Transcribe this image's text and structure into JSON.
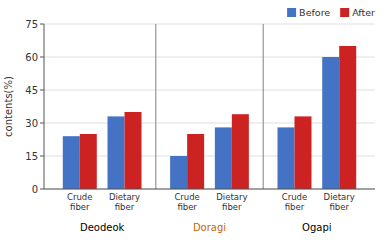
{
  "chart_data": {
    "type": "bar",
    "ylabel": "contents(%)",
    "categories": [
      "Crude\nfiber",
      "Dietary\nfiber",
      "Crude\nfiber",
      "Dietary\nfiber",
      "Crude\nfiber",
      "Dietary\nfiber"
    ],
    "groups": [
      {
        "name": "Deodeok",
        "color": "black"
      },
      {
        "name": "Doragi",
        "color": "#CC6600"
      },
      {
        "name": "Ogapi",
        "color": "black"
      }
    ],
    "series": [
      {
        "name": "Before",
        "color": "#4472C4",
        "values": [
          24,
          33,
          15,
          28,
          28,
          60
        ]
      },
      {
        "name": "After",
        "color": "#CC2222",
        "values": [
          25,
          35,
          25,
          34,
          33,
          65
        ]
      }
    ],
    "ylim": [
      0,
      75
    ],
    "yticks": [
      0,
      15,
      30,
      45,
      60,
      75
    ],
    "grid": true,
    "legend": "upper right"
  }
}
